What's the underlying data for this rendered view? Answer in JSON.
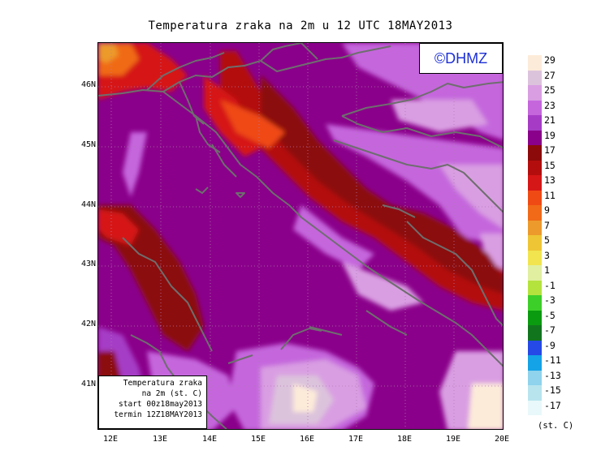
{
  "title": "Temperatura zraka na 2m u 12 UTC 18MAY2013",
  "logo_text": "©DHMZ",
  "info_box": {
    "line1": "Temperatura zraka",
    "line2": "na 2m (st. C)",
    "line3": "start 00z18may2013",
    "line4": "termin 12Z18MAY2013"
  },
  "axes": {
    "lat_labels": [
      "46N",
      "45N",
      "44N",
      "43N",
      "42N",
      "41N"
    ],
    "lon_labels": [
      "12E",
      "13E",
      "14E",
      "15E",
      "16E",
      "17E",
      "18E",
      "19E",
      "20E"
    ]
  },
  "legend": {
    "unit": "(st. C)",
    "labels": [
      "29",
      "27",
      "25",
      "23",
      "21",
      "19",
      "17",
      "15",
      "13",
      "11",
      "9",
      "7",
      "5",
      "3",
      "1",
      "-1",
      "-3",
      "-5",
      "-7",
      "-9",
      "-11",
      "-13",
      "-15",
      "-17"
    ],
    "colors": [
      "#fdebd9",
      "#dcc3dc",
      "#d99ee2",
      "#c566dd",
      "#a63cc6",
      "#8a008a",
      "#8c0a0a",
      "#b40d0d",
      "#d61717",
      "#f04a14",
      "#f06a18",
      "#ec9a2c",
      "#eec535",
      "#f1e44e",
      "#e0efa0",
      "#b5e33e",
      "#3ccf2a",
      "#0b9b10",
      "#11751e",
      "#2549e6",
      "#14a3e6",
      "#8fd3ec",
      "#b8e4ee",
      "#e9f8fa"
    ]
  },
  "colors": {
    "background_field": "#8a008a",
    "coastline": "#6e6e6e",
    "gridline": "#b07ab0"
  }
}
